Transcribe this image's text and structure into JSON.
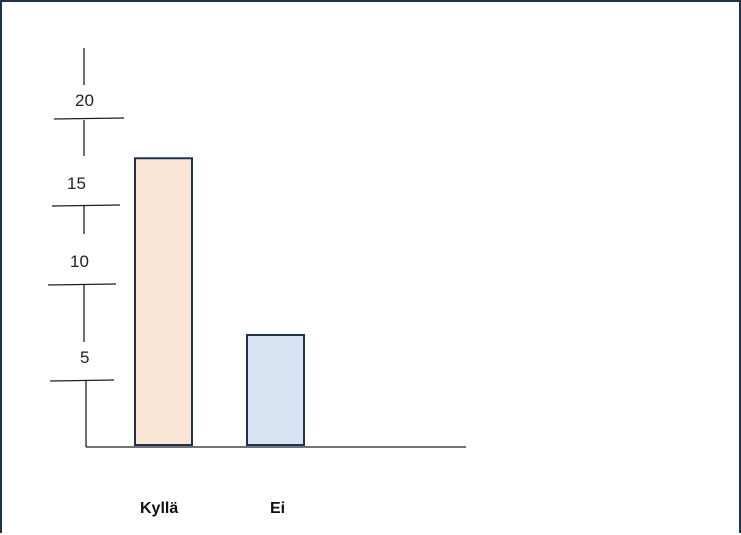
{
  "chart_data": {
    "type": "bar",
    "categories": [
      "Kyllä",
      "Ei"
    ],
    "values": [
      16.5,
      6.4
    ],
    "yticks": [
      5,
      10,
      15,
      20
    ],
    "ytick_labels": [
      "5",
      "10",
      "15",
      "20"
    ],
    "title": "",
    "xlabel": "",
    "ylabel": "",
    "grid": false,
    "legend": "none",
    "colors": {
      "bar_fills": [
        "#fbe5d6",
        "#dae3f3"
      ],
      "bar_stroke": "#1f3350",
      "axis": "#1f1f1f",
      "frame": "#1f3350"
    }
  }
}
